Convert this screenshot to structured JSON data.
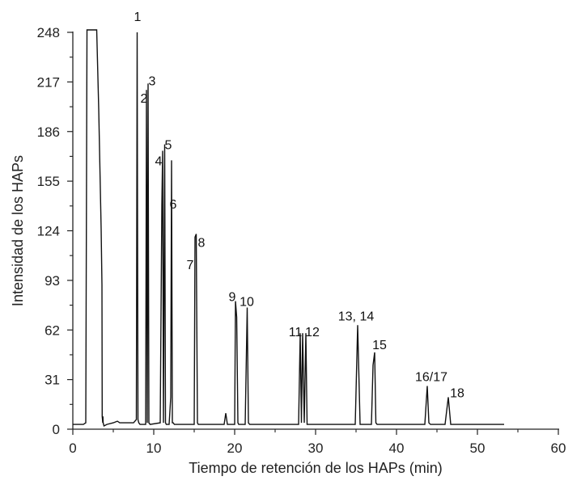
{
  "chart_data": {
    "type": "line",
    "title": "",
    "xlabel": "Tiempo de retención de los HAPs (min)",
    "ylabel": "Intensidad de los HAPs",
    "xlim": [
      0,
      60
    ],
    "ylim": [
      0,
      248
    ],
    "xticks": [
      0,
      10,
      20,
      30,
      40,
      50,
      60
    ],
    "yticks": [
      0,
      31,
      62,
      93,
      124,
      155,
      186,
      217,
      248
    ],
    "grid": false,
    "legend": "none",
    "line_color": "#111111",
    "series": [
      {
        "x": [
          0.0,
          1.3,
          1.6,
          1.75,
          1.9,
          2.5,
          2.95,
          3.2,
          3.5,
          3.6,
          3.63,
          3.7,
          3.72,
          3.75,
          3.8,
          3.85,
          4.2,
          5.0,
          5.5,
          5.8,
          6.2,
          7.0,
          7.5,
          7.85,
          7.95,
          8.05,
          8.15,
          8.3,
          9.0,
          9.1,
          9.2,
          9.3,
          9.4,
          9.55,
          10.8,
          11.0,
          11.1,
          11.2,
          11.35,
          11.45,
          11.55,
          11.9,
          12.1,
          12.2,
          12.3,
          12.4,
          12.55,
          15.0,
          15.1,
          15.25,
          15.4,
          15.5,
          18.7,
          18.9,
          19.1,
          20.0,
          20.1,
          20.25,
          20.4,
          20.5,
          21.3,
          21.55,
          21.7,
          21.85,
          27.9,
          28.1,
          28.25,
          28.4,
          28.6,
          28.8,
          28.95,
          34.9,
          35.2,
          35.5,
          36.9,
          37.1,
          37.3,
          37.45,
          37.6,
          43.5,
          43.8,
          44.0,
          44.2,
          46.0,
          46.4,
          46.7,
          53.3
        ],
        "y": [
          3,
          3,
          4,
          250,
          250,
          250,
          250,
          200,
          125,
          90,
          8,
          4,
          8,
          4,
          3,
          2,
          3,
          4,
          5,
          4,
          4,
          4,
          4,
          6,
          248,
          6,
          4,
          3,
          3,
          212,
          4,
          216,
          4,
          3,
          4,
          140,
          174,
          4,
          178,
          4,
          3,
          3,
          20,
          168,
          4,
          4,
          3,
          3,
          120,
          122,
          4,
          3,
          3,
          10,
          3,
          3,
          80,
          70,
          4,
          3,
          3,
          76,
          4,
          3,
          3,
          60,
          4,
          60,
          4,
          60,
          3,
          3,
          65,
          3,
          3,
          40,
          48,
          4,
          3,
          3,
          27,
          4,
          3,
          3,
          20,
          3,
          3
        ]
      }
    ],
    "annotations": [
      {
        "text": "1",
        "x": 8.0,
        "y": 255
      },
      {
        "text": "2",
        "x": 8.8,
        "y": 204
      },
      {
        "text": "3",
        "x": 9.8,
        "y": 215
      },
      {
        "text": "4",
        "x": 10.6,
        "y": 165
      },
      {
        "text": "5",
        "x": 11.8,
        "y": 175
      },
      {
        "text": "6",
        "x": 12.4,
        "y": 138
      },
      {
        "text": "7",
        "x": 14.5,
        "y": 100
      },
      {
        "text": "8",
        "x": 15.9,
        "y": 114
      },
      {
        "text": "9",
        "x": 19.7,
        "y": 80
      },
      {
        "text": "10",
        "x": 21.5,
        "y": 77
      },
      {
        "text": "11",
        "x": 27.5,
        "y": 58
      },
      {
        "text": "12",
        "x": 29.6,
        "y": 58
      },
      {
        "text": "13, 14",
        "x": 35.0,
        "y": 68
      },
      {
        "text": "15",
        "x": 37.9,
        "y": 50
      },
      {
        "text": "16/17",
        "x": 44.3,
        "y": 30
      },
      {
        "text": "18",
        "x": 47.5,
        "y": 20
      }
    ]
  }
}
